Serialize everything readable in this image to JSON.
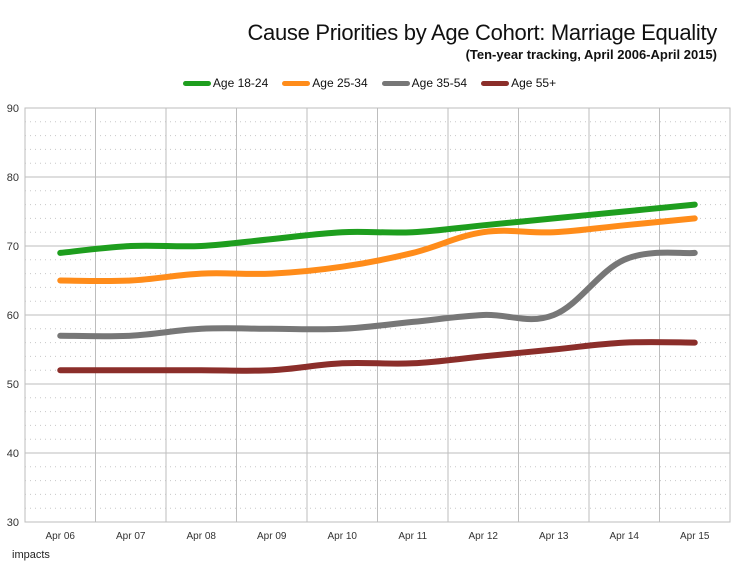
{
  "title": "Cause Priorities by Age Cohort: Marriage Equality",
  "subtitle": "(Ten-year tracking, April 2006-April 2015)",
  "brand": "impacts",
  "chart_data": {
    "type": "line",
    "title": "Cause Priorities by Age Cohort: Marriage Equality",
    "subtitle": "(Ten-year tracking, April 2006-April 2015)",
    "categories": [
      "Apr 06",
      "Apr 07",
      "Apr 08",
      "Apr 09",
      "Apr 10",
      "Apr 11",
      "Apr 12",
      "Apr 13",
      "Apr 14",
      "Apr 15"
    ],
    "ylim": [
      30,
      90
    ],
    "yticks": [
      30,
      40,
      50,
      60,
      70,
      80,
      90
    ],
    "xlabel": "",
    "ylabel": "",
    "grid": true,
    "legend_position": "top-center",
    "series": [
      {
        "name": "Age 18-24",
        "color": "#1e9e1e",
        "values": [
          69,
          70,
          70,
          71,
          72,
          72,
          73,
          74,
          75,
          76
        ]
      },
      {
        "name": "Age 25-34",
        "color": "#ff8c1a",
        "values": [
          65,
          65,
          66,
          66,
          67,
          69,
          72,
          72,
          73,
          74
        ]
      },
      {
        "name": "Age 35-54",
        "color": "#777777",
        "values": [
          57,
          57,
          58,
          58,
          58,
          59,
          60,
          60,
          68,
          69
        ]
      },
      {
        "name": "Age 55+",
        "color": "#8b2e2a",
        "values": [
          52,
          52,
          52,
          52,
          53,
          53,
          54,
          55,
          56,
          56
        ]
      }
    ]
  }
}
